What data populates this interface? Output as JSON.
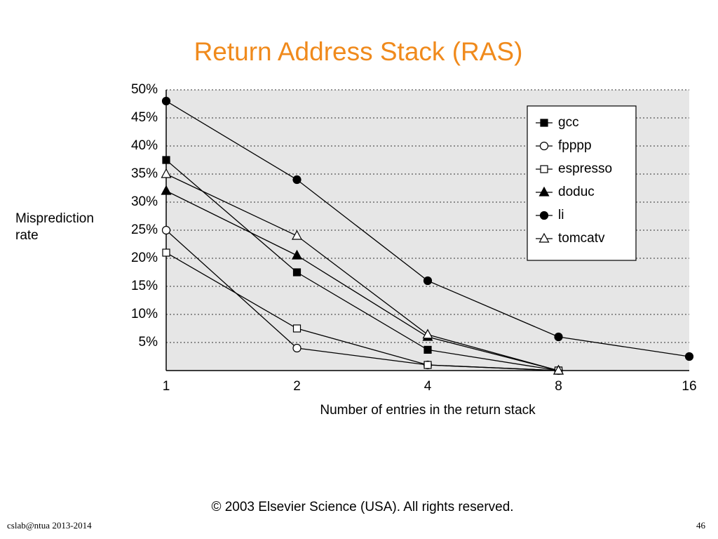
{
  "chart_data": {
    "type": "line",
    "title": "Return Address Stack (RAS)",
    "x_label": "Number of entries in the return stack",
    "y_label": "Misprediction rate",
    "categories": [
      "1",
      "2",
      "4",
      "8",
      "16"
    ],
    "ylim": [
      0,
      50
    ],
    "yticks": [
      {
        "value": 5,
        "label": "5%"
      },
      {
        "value": 10,
        "label": "10%"
      },
      {
        "value": 15,
        "label": "15%"
      },
      {
        "value": 20,
        "label": "20%"
      },
      {
        "value": 25,
        "label": "25%"
      },
      {
        "value": 30,
        "label": "30%"
      },
      {
        "value": 35,
        "label": "35%"
      },
      {
        "value": 40,
        "label": "40%"
      },
      {
        "value": 45,
        "label": "45%"
      },
      {
        "value": 50,
        "label": "50%"
      }
    ],
    "grid": true,
    "legend": "upper right",
    "series": [
      {
        "name": "gcc",
        "color": "#000000",
        "marker": "square-filled",
        "values": [
          37.5,
          17.5,
          3.7,
          0,
          null
        ]
      },
      {
        "name": "fpppp",
        "color": "#000000",
        "marker": "circle-open",
        "values": [
          25,
          4,
          1,
          0,
          null
        ]
      },
      {
        "name": "espresso",
        "color": "#000000",
        "marker": "square-open",
        "values": [
          21,
          7.5,
          1,
          0,
          null
        ]
      },
      {
        "name": "doduc",
        "color": "#000000",
        "marker": "triangle-filled",
        "values": [
          32,
          20.5,
          6,
          0,
          null
        ]
      },
      {
        "name": "li",
        "color": "#000000",
        "marker": "circle-filled",
        "values": [
          48,
          34,
          16,
          6,
          2.5
        ]
      },
      {
        "name": "tomcatv",
        "color": "#000000",
        "marker": "triangle-open",
        "values": [
          35,
          24,
          6.4,
          0,
          null
        ]
      }
    ]
  },
  "copyright": "© 2003 Elsevier Science (USA). All rights reserved.",
  "footer": "cslab@ntua 2013-2014",
  "page_number": "46"
}
